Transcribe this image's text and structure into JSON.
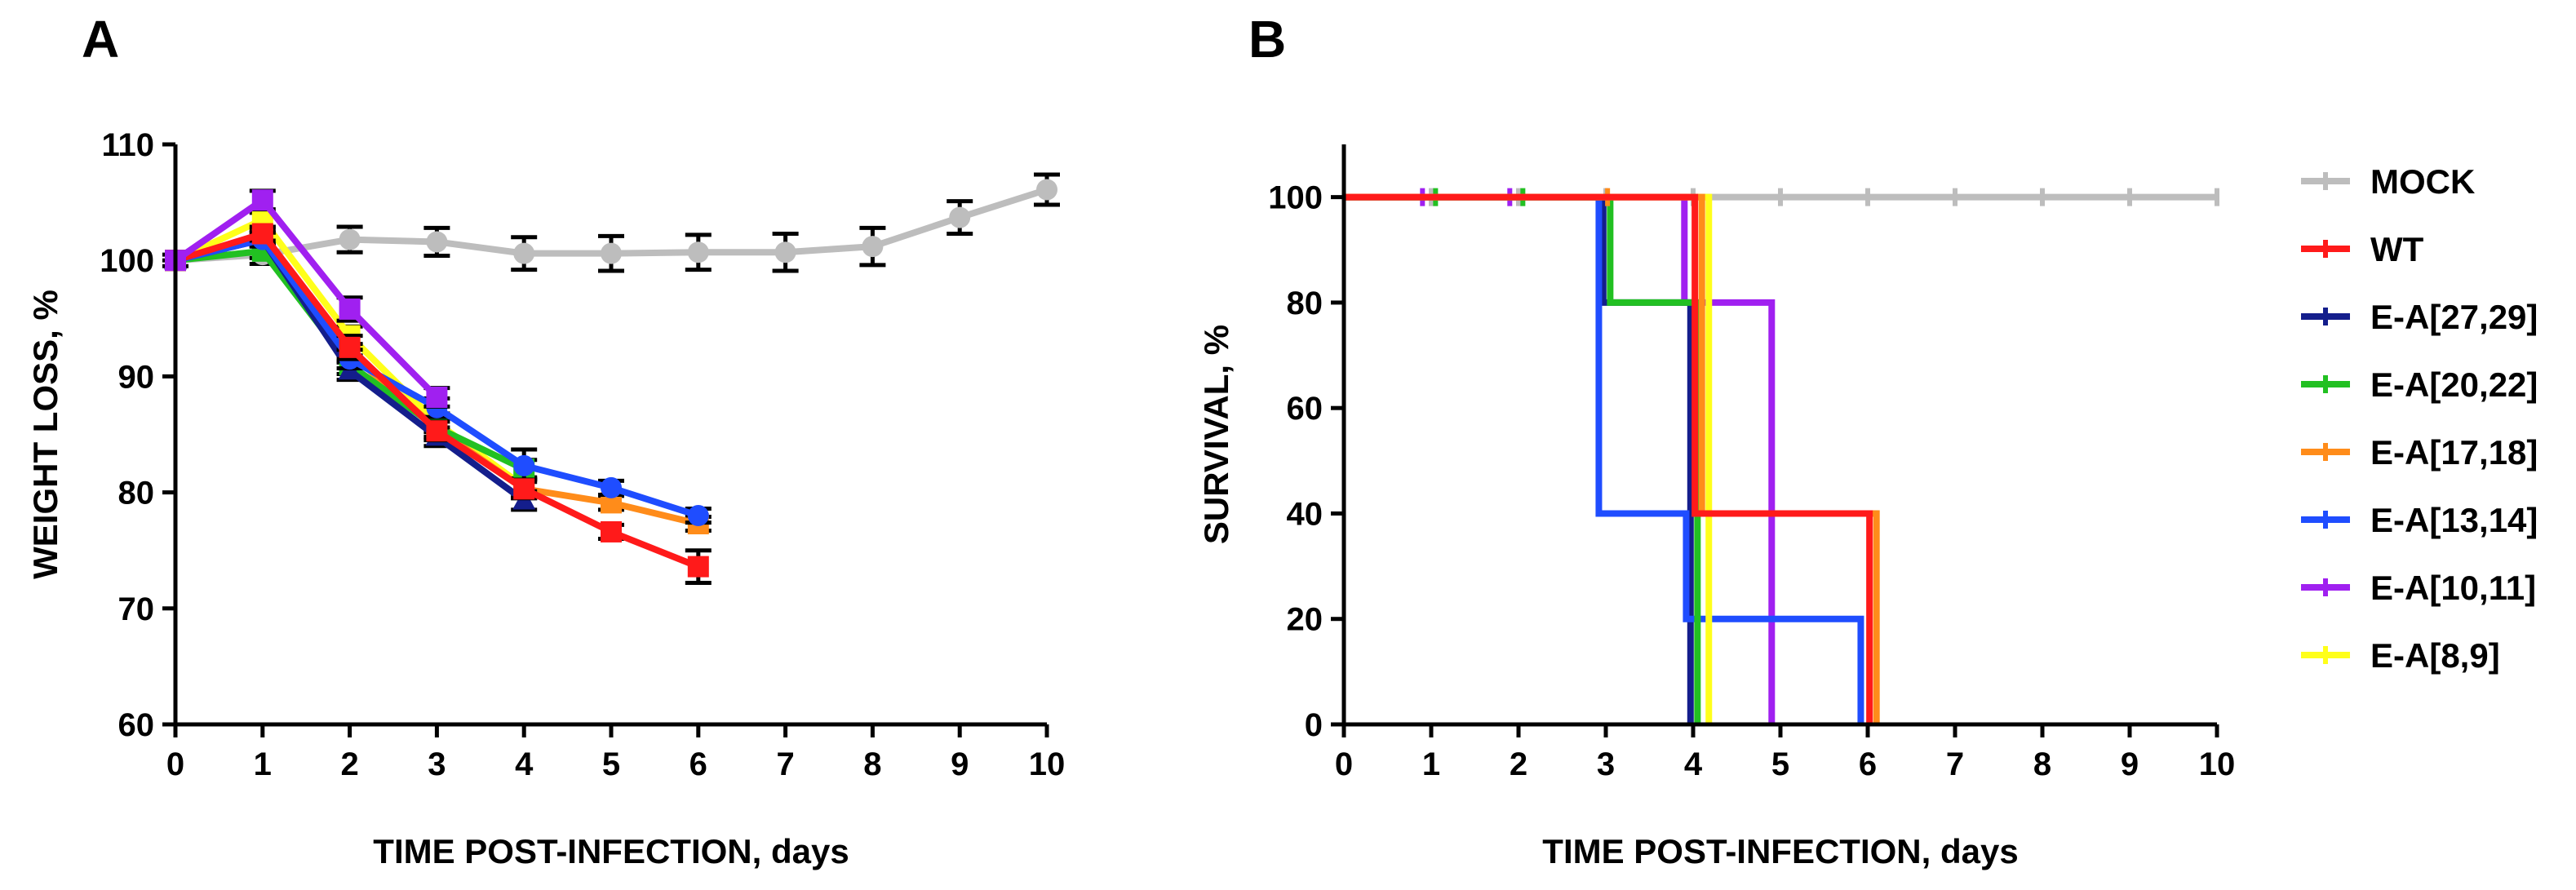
{
  "colors": {
    "MOCK": "#bdbdbd",
    "WT": "#ff1a1a",
    "E-A[27,29]": "#141e8c",
    "E-A[20,22]": "#22c022",
    "E-A[17,18]": "#ff8c1a",
    "E-A[13,14]": "#1f4dff",
    "E-A[10,11]": "#a020f0",
    "E-A[8,9]": "#ffff1a"
  },
  "chart_data": [
    {
      "panel": "A",
      "type": "line",
      "xlabel": "TIME POST-INFECTION, days",
      "ylabel": "WEIGHT LOSS, %",
      "xlim": [
        0,
        10
      ],
      "ylim": [
        60,
        110
      ],
      "xticks": [
        0,
        1,
        2,
        3,
        4,
        5,
        6,
        7,
        8,
        9,
        10
      ],
      "yticks": [
        60,
        70,
        80,
        90,
        100,
        110
      ],
      "series": [
        {
          "name": "MOCK",
          "x": [
            0,
            1,
            2,
            3,
            4,
            5,
            6,
            7,
            8,
            9,
            10
          ],
          "values": [
            100,
            100.5,
            101.8,
            101.6,
            100.6,
            100.6,
            100.7,
            100.7,
            101.2,
            103.7,
            106.1
          ],
          "err": [
            0.5,
            0.8,
            1.1,
            1.2,
            1.4,
            1.5,
            1.5,
            1.6,
            1.6,
            1.4,
            1.3
          ],
          "marker": "circle"
        },
        {
          "name": "E-A[8,9]",
          "x": [
            0,
            1,
            2,
            3,
            4
          ],
          "values": [
            100,
            103.5,
            93.5,
            86,
            80.5
          ],
          "err": [
            0,
            0.6,
            0.8,
            0.8,
            0.8
          ],
          "marker": "square"
        },
        {
          "name": "E-A[17,18]",
          "x": [
            0,
            1,
            2,
            3,
            4,
            5,
            6
          ],
          "values": [
            100,
            102,
            92,
            85.5,
            80.3,
            79.1,
            77.3
          ],
          "err": [
            0,
            0.6,
            0.8,
            0.8,
            0.8,
            0.6,
            0.6
          ],
          "marker": "square"
        },
        {
          "name": "E-A[20,22]",
          "x": [
            0,
            1,
            2,
            3,
            4
          ],
          "values": [
            100,
            100.8,
            91,
            85.6,
            82
          ],
          "err": [
            0,
            0.6,
            0.8,
            0.8,
            0.8
          ],
          "marker": "square"
        },
        {
          "name": "E-A[27,29]",
          "x": [
            0,
            1,
            2,
            3,
            4
          ],
          "values": [
            100,
            101.8,
            90.5,
            84.8,
            79.3
          ],
          "err": [
            0,
            0.6,
            0.8,
            0.8,
            0.8
          ],
          "marker": "triangle"
        },
        {
          "name": "E-A[13,14]",
          "x": [
            0,
            1,
            2,
            3,
            4,
            5,
            6
          ],
          "values": [
            100,
            101.8,
            91.5,
            87.3,
            82.3,
            80.4,
            78
          ],
          "err": [
            0,
            0.6,
            0.8,
            0.8,
            1.4,
            0.6,
            0.6
          ],
          "marker": "circle"
        },
        {
          "name": "WT",
          "x": [
            0,
            1,
            2,
            3,
            4,
            5,
            6
          ],
          "values": [
            100,
            102.3,
            92.5,
            85.3,
            80.3,
            76.6,
            73.6
          ],
          "err": [
            0,
            0.6,
            1,
            0.8,
            0.8,
            0.6,
            1.4
          ],
          "marker": "square"
        },
        {
          "name": "E-A[10,11]",
          "x": [
            0,
            1,
            2,
            3
          ],
          "values": [
            100,
            105.2,
            95.8,
            88.2
          ],
          "err": [
            0,
            0.8,
            1,
            0.8
          ],
          "marker": "square"
        }
      ]
    },
    {
      "panel": "B",
      "type": "line",
      "subtype": "kaplan-meier survival",
      "xlabel": "TIME POST-INFECTION, days",
      "ylabel": "SURVIVAL, %",
      "xlim": [
        0,
        10
      ],
      "ylim": [
        0,
        110
      ],
      "xticks": [
        0,
        1,
        2,
        3,
        4,
        5,
        6,
        7,
        8,
        9,
        10
      ],
      "yticks": [
        0,
        20,
        40,
        60,
        80,
        100
      ],
      "legend_position": "right",
      "series": [
        {
          "name": "MOCK",
          "steps": [
            [
              0,
              100
            ],
            [
              10,
              100
            ]
          ],
          "censor_ticks": [
            1,
            2,
            3,
            4,
            5,
            6,
            7,
            8,
            9,
            10
          ]
        },
        {
          "name": "E-A[10,11]",
          "steps": [
            [
              0,
              100
            ],
            [
              3.9,
              100
            ],
            [
              3.9,
              80
            ],
            [
              4.9,
              80
            ],
            [
              4.9,
              0
            ]
          ],
          "censor_ticks": [
            0.9,
            1.9
          ]
        },
        {
          "name": "E-A[27,29]",
          "steps": [
            [
              0,
              100
            ],
            [
              2.97,
              100
            ],
            [
              2.97,
              80
            ],
            [
              3.97,
              80
            ],
            [
              3.97,
              0
            ]
          ],
          "censor_ticks": []
        },
        {
          "name": "E-A[13,14]",
          "steps": [
            [
              0,
              100
            ],
            [
              2.92,
              100
            ],
            [
              2.92,
              40
            ],
            [
              3.92,
              40
            ],
            [
              3.92,
              20
            ],
            [
              5.92,
              20
            ],
            [
              5.92,
              0
            ]
          ],
          "censor_ticks": []
        },
        {
          "name": "E-A[20,22]",
          "steps": [
            [
              0,
              100
            ],
            [
              3.05,
              100
            ],
            [
              3.05,
              80
            ],
            [
              4.05,
              80
            ],
            [
              4.05,
              0
            ]
          ],
          "censor_ticks": [
            1.05,
            2.05
          ]
        },
        {
          "name": "E-A[8,9]",
          "steps": [
            [
              0,
              100
            ],
            [
              4.18,
              100
            ],
            [
              4.18,
              0
            ]
          ],
          "censor_ticks": []
        },
        {
          "name": "E-A[17,18]",
          "steps": [
            [
              0,
              100
            ],
            [
              4.1,
              100
            ],
            [
              4.1,
              40
            ],
            [
              6.1,
              40
            ],
            [
              6.1,
              0
            ]
          ],
          "censor_ticks": [
            3.02
          ]
        },
        {
          "name": "WT",
          "steps": [
            [
              0,
              100
            ],
            [
              4.02,
              100
            ],
            [
              4.02,
              40
            ],
            [
              6.02,
              40
            ],
            [
              6.02,
              0
            ]
          ],
          "censor_ticks": []
        }
      ],
      "legend": [
        "MOCK",
        "WT",
        "E-A[27,29]",
        "E-A[20,22]",
        "E-A[17,18]",
        "E-A[13,14]",
        "E-A[10,11]",
        "E-A[8,9]"
      ]
    }
  ],
  "panelA": {
    "label": "A"
  },
  "panelB": {
    "label": "B"
  }
}
